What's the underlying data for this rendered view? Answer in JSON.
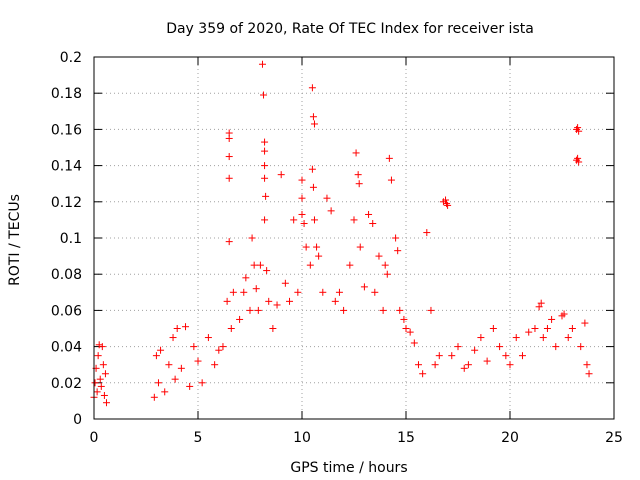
{
  "chart_data": {
    "type": "scatter",
    "title": "Day 359 of 2020, Rate Of TEC Index for receiver ista",
    "xlabel": "GPS time / hours",
    "ylabel": "ROTI / TECUs",
    "xlim": [
      0,
      25
    ],
    "ylim": [
      0,
      0.2
    ],
    "xticks": [
      0,
      5,
      10,
      15,
      20,
      25
    ],
    "xtick_labels": [
      "0",
      "5",
      "10",
      "15",
      "20",
      "25"
    ],
    "yticks": [
      0,
      0.02,
      0.04,
      0.06,
      0.08,
      0.1,
      0.12,
      0.14,
      0.16,
      0.18,
      0.2
    ],
    "ytick_labels": [
      "0",
      "0.02",
      "0.04",
      "0.06",
      "0.08",
      "0.1",
      "0.12",
      "0.14",
      "0.16",
      "0.18",
      "0.2"
    ],
    "grid": true,
    "marker": "+",
    "marker_color": "#ff0000",
    "series": [
      {
        "name": "ROTI",
        "points": [
          [
            0.0,
            0.012
          ],
          [
            0.05,
            0.02
          ],
          [
            0.1,
            0.028
          ],
          [
            0.15,
            0.015
          ],
          [
            0.2,
            0.035
          ],
          [
            0.25,
            0.041
          ],
          [
            0.3,
            0.022
          ],
          [
            0.35,
            0.018
          ],
          [
            0.4,
            0.04
          ],
          [
            0.45,
            0.03
          ],
          [
            0.5,
            0.013
          ],
          [
            0.55,
            0.025
          ],
          [
            0.6,
            0.009
          ],
          [
            2.9,
            0.012
          ],
          [
            3.0,
            0.035
          ],
          [
            3.1,
            0.02
          ],
          [
            3.2,
            0.038
          ],
          [
            3.4,
            0.015
          ],
          [
            3.6,
            0.03
          ],
          [
            3.8,
            0.045
          ],
          [
            3.9,
            0.022
          ],
          [
            4.0,
            0.05
          ],
          [
            4.2,
            0.028
          ],
          [
            4.4,
            0.051
          ],
          [
            4.6,
            0.018
          ],
          [
            4.8,
            0.04
          ],
          [
            5.0,
            0.032
          ],
          [
            5.2,
            0.02
          ],
          [
            5.5,
            0.045
          ],
          [
            5.8,
            0.03
          ],
          [
            6.0,
            0.038
          ],
          [
            6.2,
            0.04
          ],
          [
            6.4,
            0.065
          ],
          [
            6.5,
            0.158
          ],
          [
            6.5,
            0.155
          ],
          [
            6.5,
            0.145
          ],
          [
            6.5,
            0.133
          ],
          [
            6.5,
            0.098
          ],
          [
            6.6,
            0.05
          ],
          [
            6.7,
            0.07
          ],
          [
            7.0,
            0.055
          ],
          [
            7.2,
            0.07
          ],
          [
            7.3,
            0.078
          ],
          [
            7.5,
            0.06
          ],
          [
            7.6,
            0.1
          ],
          [
            7.7,
            0.085
          ],
          [
            7.8,
            0.072
          ],
          [
            7.9,
            0.06
          ],
          [
            8.0,
            0.085
          ],
          [
            8.1,
            0.196
          ],
          [
            8.15,
            0.179
          ],
          [
            8.2,
            0.153
          ],
          [
            8.2,
            0.148
          ],
          [
            8.2,
            0.14
          ],
          [
            8.2,
            0.133
          ],
          [
            8.25,
            0.123
          ],
          [
            8.2,
            0.11
          ],
          [
            8.3,
            0.082
          ],
          [
            8.4,
            0.065
          ],
          [
            8.6,
            0.05
          ],
          [
            8.8,
            0.063
          ],
          [
            9.0,
            0.135
          ],
          [
            9.2,
            0.075
          ],
          [
            9.4,
            0.065
          ],
          [
            9.6,
            0.11
          ],
          [
            9.8,
            0.07
          ],
          [
            10.0,
            0.132
          ],
          [
            10.0,
            0.122
          ],
          [
            10.0,
            0.113
          ],
          [
            10.1,
            0.108
          ],
          [
            10.2,
            0.095
          ],
          [
            10.4,
            0.085
          ],
          [
            10.5,
            0.183
          ],
          [
            10.55,
            0.167
          ],
          [
            10.6,
            0.163
          ],
          [
            10.5,
            0.138
          ],
          [
            10.55,
            0.128
          ],
          [
            10.6,
            0.11
          ],
          [
            10.7,
            0.095
          ],
          [
            10.8,
            0.09
          ],
          [
            11.0,
            0.07
          ],
          [
            11.2,
            0.122
          ],
          [
            11.4,
            0.115
          ],
          [
            11.6,
            0.065
          ],
          [
            11.8,
            0.07
          ],
          [
            12.0,
            0.06
          ],
          [
            12.3,
            0.085
          ],
          [
            12.5,
            0.11
          ],
          [
            12.6,
            0.147
          ],
          [
            12.7,
            0.135
          ],
          [
            12.75,
            0.13
          ],
          [
            12.8,
            0.095
          ],
          [
            13.0,
            0.073
          ],
          [
            13.2,
            0.113
          ],
          [
            13.4,
            0.108
          ],
          [
            13.5,
            0.07
          ],
          [
            13.7,
            0.09
          ],
          [
            13.9,
            0.06
          ],
          [
            14.0,
            0.085
          ],
          [
            14.1,
            0.08
          ],
          [
            14.2,
            0.144
          ],
          [
            14.3,
            0.132
          ],
          [
            14.5,
            0.1
          ],
          [
            14.6,
            0.093
          ],
          [
            14.7,
            0.06
          ],
          [
            14.9,
            0.055
          ],
          [
            15.0,
            0.05
          ],
          [
            15.2,
            0.048
          ],
          [
            15.4,
            0.042
          ],
          [
            15.6,
            0.03
          ],
          [
            15.8,
            0.025
          ],
          [
            16.0,
            0.103
          ],
          [
            16.2,
            0.06
          ],
          [
            16.4,
            0.03
          ],
          [
            16.6,
            0.035
          ],
          [
            16.8,
            0.12
          ],
          [
            16.9,
            0.121
          ],
          [
            16.95,
            0.119
          ],
          [
            17.0,
            0.118
          ],
          [
            17.2,
            0.035
          ],
          [
            17.5,
            0.04
          ],
          [
            17.8,
            0.028
          ],
          [
            18.0,
            0.03
          ],
          [
            18.3,
            0.038
          ],
          [
            18.6,
            0.045
          ],
          [
            18.9,
            0.032
          ],
          [
            19.2,
            0.05
          ],
          [
            19.5,
            0.04
          ],
          [
            19.8,
            0.035
          ],
          [
            20.0,
            0.03
          ],
          [
            20.3,
            0.045
          ],
          [
            20.6,
            0.035
          ],
          [
            20.9,
            0.048
          ],
          [
            21.2,
            0.05
          ],
          [
            21.4,
            0.062
          ],
          [
            21.5,
            0.064
          ],
          [
            21.6,
            0.045
          ],
          [
            21.8,
            0.05
          ],
          [
            22.0,
            0.055
          ],
          [
            22.2,
            0.04
          ],
          [
            22.5,
            0.057
          ],
          [
            22.6,
            0.058
          ],
          [
            22.8,
            0.045
          ],
          [
            23.0,
            0.05
          ],
          [
            23.2,
            0.16
          ],
          [
            23.25,
            0.161
          ],
          [
            23.3,
            0.159
          ],
          [
            23.2,
            0.143
          ],
          [
            23.25,
            0.144
          ],
          [
            23.3,
            0.142
          ],
          [
            23.4,
            0.04
          ],
          [
            23.6,
            0.053
          ],
          [
            23.7,
            0.03
          ],
          [
            23.8,
            0.025
          ]
        ]
      }
    ]
  }
}
